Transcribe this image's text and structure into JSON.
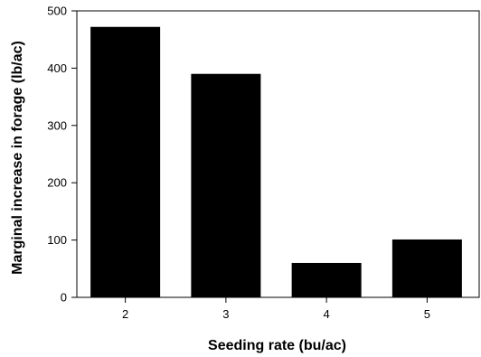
{
  "chart_data": {
    "type": "bar",
    "title": "",
    "xlabel": "Seeding rate (bu/ac)",
    "ylabel": "Marginal increase in forage (lb/ac)",
    "categories": [
      "2",
      "3",
      "4",
      "5"
    ],
    "values": [
      472,
      390,
      60,
      101
    ],
    "ylim": [
      0,
      500
    ],
    "yticks": [
      0,
      100,
      200,
      300,
      400,
      500
    ],
    "grid": false,
    "legend": "none",
    "colors": {
      "bar": "#000000",
      "axis": "#000000",
      "background": "#ffffff"
    }
  }
}
